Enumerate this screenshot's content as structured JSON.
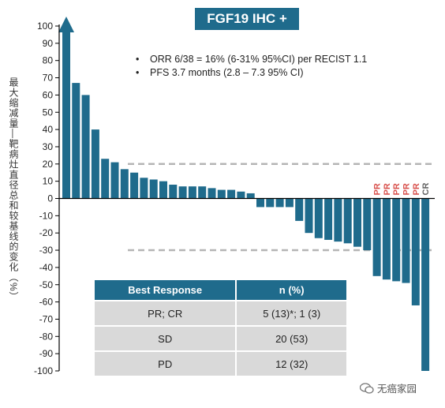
{
  "title": "FGF19 IHC +",
  "notes": [
    "ORR 6/38 = 16% (6-31% 95%CI) per RECIST 1.1",
    "PFS 3.7 months (2.8 – 7.3 95% CI)"
  ],
  "bullet": "•",
  "ylabel": "最大缩减量—靶病灶直径总和较基线的变化（%）",
  "table": {
    "headers": [
      "Best Response",
      "n (%)"
    ],
    "rows": [
      [
        "PR; CR",
        "5 (13)*; 1 (3)"
      ],
      [
        "SD",
        "20 (53)"
      ],
      [
        "PD",
        "12 (32)"
      ]
    ]
  },
  "watermark": "无癌家园",
  "colors": {
    "bar": "#1f6b8c",
    "pr": "#d9534f",
    "cr": "#666666",
    "ref": "#b5b5b5",
    "header": "#1f6b8c"
  },
  "chart_data": {
    "type": "bar",
    "ylim": [
      -100,
      100
    ],
    "yticks": [
      100,
      90,
      80,
      70,
      60,
      50,
      40,
      30,
      20,
      10,
      0,
      -10,
      -20,
      -30,
      -40,
      -50,
      -60,
      -70,
      -80,
      -90,
      -100
    ],
    "reference_lines": [
      20,
      -30
    ],
    "values": [
      100,
      67,
      60,
      40,
      23,
      21,
      17,
      15,
      12,
      11,
      10,
      8,
      7,
      7,
      7,
      6,
      5,
      5,
      4,
      3,
      -5,
      -5,
      -5,
      -5,
      -13,
      -20,
      -23,
      -24,
      -25,
      -26,
      -28,
      -30,
      -45,
      -47,
      -48,
      -49,
      -62,
      -100
    ],
    "arrow_on_first": true,
    "annotations": [
      "",
      "",
      "",
      "",
      "",
      "",
      "",
      "",
      "",
      "",
      "",
      "",
      "",
      "",
      "",
      "",
      "",
      "",
      "",
      "",
      "",
      "",
      "",
      "",
      "",
      "",
      "",
      "",
      "",
      "",
      "",
      "",
      "PR",
      "PR",
      "PR",
      "PR",
      "PR",
      "CR"
    ]
  }
}
